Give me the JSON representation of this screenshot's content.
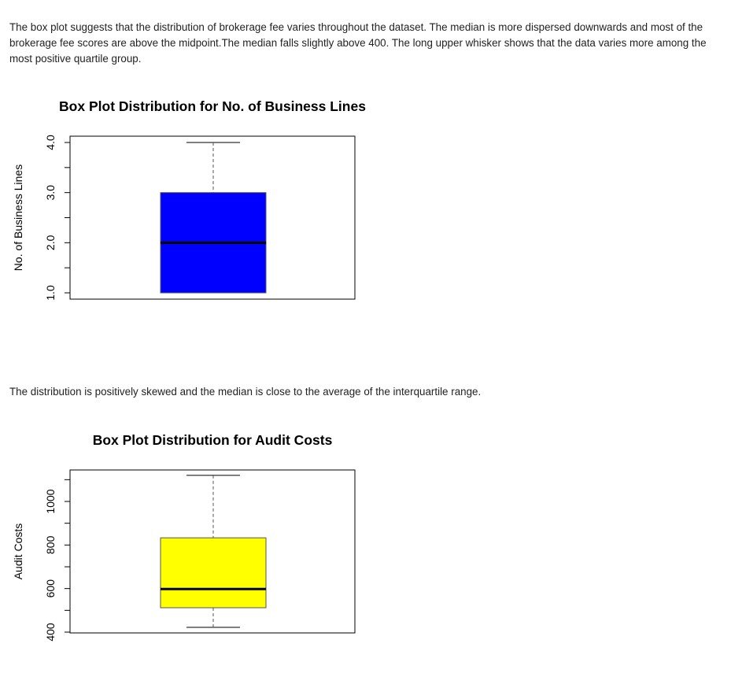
{
  "paragraphs": [
    "The box plot suggests that the distribution of brokerage fee varies throughout the dataset. The median is more dispersed downwards and most of the brokerage fee scores are above the midpoint.The median falls slightly above 400. The long upper whisker shows that the data varies more among the most positive quartile group.",
    "The distribution is positively skewed and the median is close to the average of the interquartile range."
  ],
  "chart_data": [
    {
      "type": "boxplot",
      "title": "Box Plot Distribution for No. of Business Lines",
      "ylabel": "No. of Business Lines",
      "xlabel": "",
      "ylim": [
        0.88,
        4.12
      ],
      "ticks": [
        1.0,
        1.5,
        2.0,
        2.5,
        3.0,
        3.5,
        4.0
      ],
      "tick_labels": [
        "1.0",
        "2.0",
        "3.0",
        "4.0"
      ],
      "labeled_ticks": [
        1.0,
        2.0,
        3.0,
        4.0
      ],
      "fill": "#0000FF",
      "stats": {
        "min": 1.0,
        "q1": 1.0,
        "median": 2.0,
        "q3": 3.0,
        "max": 4.0
      }
    },
    {
      "type": "boxplot",
      "title": "Box Plot Distribution for Audit Costs",
      "ylabel": "Audit Costs",
      "xlabel": "",
      "ylim": [
        400,
        1130
      ],
      "ticks": [
        400,
        500,
        600,
        700,
        800,
        900,
        1000,
        1100
      ],
      "tick_labels": [
        "400",
        "600",
        "800",
        "1000"
      ],
      "labeled_ticks": [
        400,
        600,
        800,
        1000
      ],
      "fill": "#FFFF00",
      "stats": {
        "min": 422,
        "q1": 512,
        "median": 598,
        "q3": 833,
        "max": 1120
      }
    }
  ]
}
